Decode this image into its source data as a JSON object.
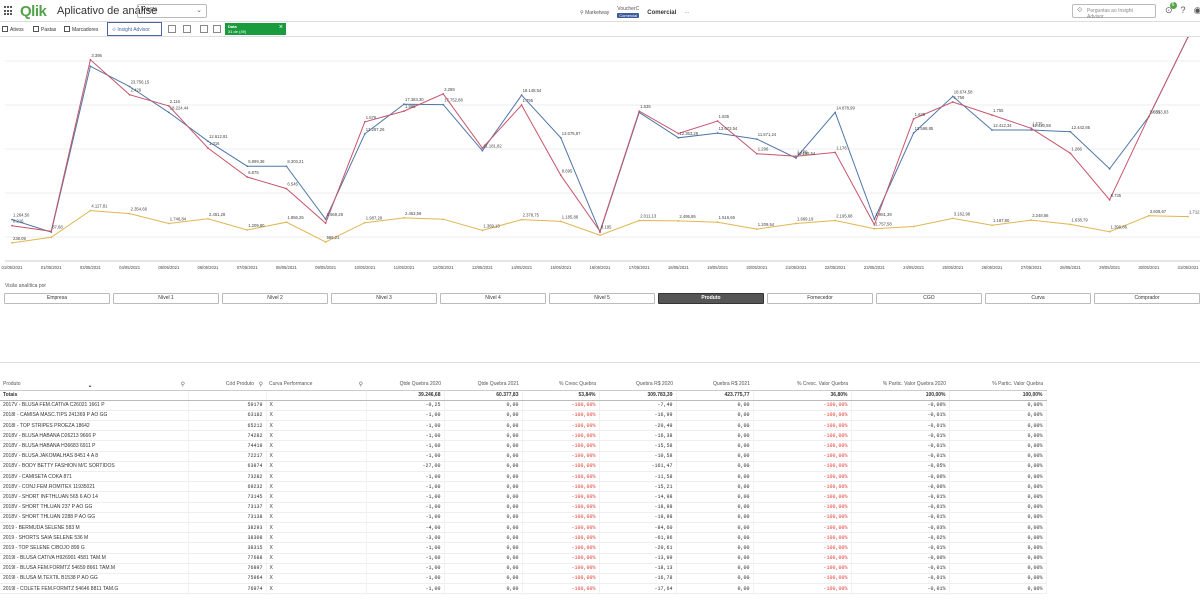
{
  "header": {
    "logo": "Qlik",
    "app_title": "Aplicativo de análise",
    "sheet_select": "Pasta",
    "nav_marketplace": "Marketway",
    "nav_active_top": "VoucherC",
    "nav_active_pill": "Comercial",
    "nav_commercial": "Comercial",
    "more": "···",
    "insight_search_placeholder": "Perguntas ao Insight Advisor",
    "notification_count": "6"
  },
  "toolbar": {
    "assets": "Ativos",
    "sheets": "Pastas",
    "bookmarks": "Marcadores",
    "insight_advisor": "Insight Advisor",
    "selection_field": "Data",
    "selection_value": "31 de (49)"
  },
  "chart_data": {
    "type": "line",
    "x": [
      "01/05/2021",
      "01/05/2021",
      "03/05/2021",
      "04/05/2021",
      "05/05/2021",
      "06/05/2021",
      "07/05/2021",
      "08/05/2021",
      "09/05/2021",
      "10/05/2021",
      "11/05/2021",
      "12/05/2021",
      "13/05/2021",
      "14/05/2021",
      "15/05/2021",
      "16/05/2021",
      "17/05/2021",
      "18/05/2021",
      "19/05/2021",
      "20/05/2021",
      "21/05/2021",
      "22/05/2021",
      "23/05/2021",
      "24/05/2021",
      "25/05/2021",
      "26/05/2021",
      "27/05/2021",
      "28/05/2021",
      "29/05/2021",
      "30/05/2021",
      "31/05/2021"
    ],
    "series": [
      {
        "color": "#4f77a8",
        "values": [
          9.6,
          6.7,
          45.2,
          40.5,
          34.5,
          27.8,
          22.0,
          22.0,
          9.7,
          29.5,
          36.4,
          36.3,
          25.6,
          38.5,
          28.6,
          6.7,
          34.5,
          28.6,
          29.7,
          28.3,
          23.9,
          34.5,
          9.7,
          29.7,
          38.2,
          30.4,
          30.4,
          30.0,
          21.4,
          33.5,
          52.0
        ]
      },
      {
        "color": "#c7566b",
        "values": [
          8.2,
          6.9,
          46.7,
          38.6,
          36.0,
          26.2,
          19.5,
          16.8,
          8.8,
          32.3,
          34.8,
          38.8,
          26.2,
          36.2,
          19.9,
          6.9,
          34.8,
          29.6,
          32.5,
          24.9,
          24.3,
          25.2,
          8.4,
          33.0,
          36.9,
          33.9,
          30.8,
          25.0,
          14.2,
          33.5,
          52.0
        ]
      },
      {
        "color": "#e0b651",
        "values": [
          4.2,
          5.5,
          11.7,
          11.0,
          8.7,
          9.8,
          7.2,
          9.0,
          4.4,
          8.9,
          10.0,
          9.7,
          7.1,
          9.6,
          9.2,
          6.0,
          9.4,
          9.3,
          9.0,
          7.4,
          8.7,
          9.4,
          7.5,
          8.0,
          9.9,
          8.3,
          9.5,
          8.5,
          6.8,
          10.5,
          10.3
        ]
      }
    ],
    "labels": [
      {
        "i": 0,
        "s": 0,
        "text": "1.264,50"
      },
      {
        "i": 0,
        "s": 1,
        "text": "8.216"
      },
      {
        "i": 0,
        "s": 2,
        "text": "238,09"
      },
      {
        "i": 1,
        "s": 1,
        "text": "87,68"
      },
      {
        "i": 2,
        "s": 1,
        "text": "3.395"
      },
      {
        "i": 2,
        "s": 2,
        "text": "4.117,81"
      },
      {
        "i": 3,
        "s": 0,
        "text": "23.756,15"
      },
      {
        "i": 3,
        "s": 1,
        "text": "2.426"
      },
      {
        "i": 3,
        "s": 2,
        "text": "2.354,68"
      },
      {
        "i": 4,
        "s": 1,
        "text": "2.116"
      },
      {
        "i": 4,
        "s": 0,
        "text": "18.224,44"
      },
      {
        "i": 4,
        "s": 2,
        "text": "1.746,84"
      },
      {
        "i": 5,
        "s": 0,
        "text": "12.612,81"
      },
      {
        "i": 5,
        "s": 1,
        "text": "1.316"
      },
      {
        "i": 5,
        "s": 2,
        "text": "2.451,28"
      },
      {
        "i": 6,
        "s": 0,
        "text": "5.899,38"
      },
      {
        "i": 6,
        "s": 1,
        "text": "6.875"
      },
      {
        "i": 6,
        "s": 2,
        "text": "1.209,80"
      },
      {
        "i": 7,
        "s": 0,
        "text": "8.303,21"
      },
      {
        "i": 7,
        "s": 1,
        "text": "6.545"
      },
      {
        "i": 7,
        "s": 2,
        "text": "1.856,25"
      },
      {
        "i": 8,
        "s": 0,
        "text": "2.569,28"
      },
      {
        "i": 8,
        "s": 2,
        "text": "566,21"
      },
      {
        "i": 9,
        "s": 1,
        "text": "1.576"
      },
      {
        "i": 9,
        "s": 0,
        "text": "13.287,26"
      },
      {
        "i": 9,
        "s": 2,
        "text": "1.987,28"
      },
      {
        "i": 10,
        "s": 0,
        "text": "17.383,30"
      },
      {
        "i": 10,
        "s": 1,
        "text": "1.995"
      },
      {
        "i": 10,
        "s": 2,
        "text": "2.463,59"
      },
      {
        "i": 11,
        "s": 1,
        "text": "2.289"
      },
      {
        "i": 11,
        "s": 0,
        "text": "17.752,88"
      },
      {
        "i": 12,
        "s": 0,
        "text": "11.181,82"
      },
      {
        "i": 12,
        "s": 2,
        "text": "1.369,13"
      },
      {
        "i": 13,
        "s": 0,
        "text": "18.148,54"
      },
      {
        "i": 13,
        "s": 1,
        "text": "1.795"
      },
      {
        "i": 13,
        "s": 2,
        "text": "2.378,75"
      },
      {
        "i": 14,
        "s": 0,
        "text": "13.075,87"
      },
      {
        "i": 14,
        "s": 1,
        "text": "8.695"
      },
      {
        "i": 14,
        "s": 2,
        "text": "1.185,88"
      },
      {
        "i": 15,
        "s": 1,
        "text": "8.195"
      },
      {
        "i": 16,
        "s": 1,
        "text": "1.635"
      },
      {
        "i": 16,
        "s": 2,
        "text": "2.011,13"
      },
      {
        "i": 17,
        "s": 0,
        "text": "12.353,29"
      },
      {
        "i": 17,
        "s": 2,
        "text": "2.495,95"
      },
      {
        "i": 18,
        "s": 1,
        "text": "1.835"
      },
      {
        "i": 18,
        "s": 0,
        "text": "13.673,54"
      },
      {
        "i": 18,
        "s": 2,
        "text": "1.516,65"
      },
      {
        "i": 19,
        "s": 0,
        "text": "11.571,24"
      },
      {
        "i": 19,
        "s": 1,
        "text": "1.296"
      },
      {
        "i": 19,
        "s": 2,
        "text": "1.209,54"
      },
      {
        "i": 20,
        "s": 0,
        "text": "11.198,54"
      },
      {
        "i": 20,
        "s": 1,
        "text": "1.189"
      },
      {
        "i": 20,
        "s": 2,
        "text": "1.669,19"
      },
      {
        "i": 21,
        "s": 0,
        "text": "14.878,99"
      },
      {
        "i": 21,
        "s": 1,
        "text": "1.176"
      },
      {
        "i": 21,
        "s": 2,
        "text": "2.195,68"
      },
      {
        "i": 22,
        "s": 0,
        "text": "2.981,39"
      },
      {
        "i": 22,
        "s": 2,
        "text": "1.757,58"
      },
      {
        "i": 23,
        "s": 1,
        "text": "1.635"
      },
      {
        "i": 23,
        "s": 0,
        "text": "13.598,85"
      },
      {
        "i": 24,
        "s": 0,
        "text": "18.674,58"
      },
      {
        "i": 24,
        "s": 1,
        "text": "1.756"
      },
      {
        "i": 24,
        "s": 2,
        "text": "3.162,98"
      },
      {
        "i": 25,
        "s": 1,
        "text": "1.755"
      },
      {
        "i": 25,
        "s": 0,
        "text": "12.412,34"
      },
      {
        "i": 25,
        "s": 2,
        "text": "1.187,80"
      },
      {
        "i": 26,
        "s": 1,
        "text": "1.575"
      },
      {
        "i": 26,
        "s": 0,
        "text": "12.420,58"
      },
      {
        "i": 26,
        "s": 2,
        "text": "2.248,66"
      },
      {
        "i": 27,
        "s": 0,
        "text": "12.442,85"
      },
      {
        "i": 27,
        "s": 1,
        "text": "1.266"
      },
      {
        "i": 27,
        "s": 2,
        "text": "1.638,79"
      },
      {
        "i": 28,
        "s": 1,
        "text": "8.735"
      },
      {
        "i": 28,
        "s": 2,
        "text": "1.399,86"
      },
      {
        "i": 29,
        "s": 1,
        "text": "1.335"
      },
      {
        "i": 29,
        "s": 0,
        "text": "14.513,83"
      },
      {
        "i": 29,
        "s": 2,
        "text": "3.608,67"
      },
      {
        "i": 30,
        "s": 2,
        "text": "1.712,89"
      }
    ]
  },
  "dimension_bar": {
    "title": "Visão analítica por",
    "buttons": [
      "Empresa",
      "Nível 1",
      "Nível 2",
      "Nível 3",
      "Nível 4",
      "Nível 5",
      "Produto",
      "Fornecedor",
      "CGO",
      "Curva",
      "Comprador"
    ],
    "active": "Produto"
  },
  "table": {
    "columns": [
      "Produto",
      "Cód Produto",
      "Curva Performance",
      "Qtde Quebra 2020",
      "Qtde Quebra 2021",
      "% Cresc Quebra",
      "Quebra R$ 2020",
      "Quebra R$ 2021",
      "% Cresc. Valor Quebra",
      "% Partic. Valor Quebra 2020",
      "% Partic. Valor Quebra"
    ],
    "totals": [
      "Totais",
      "",
      "",
      "39.246,68",
      "60.377,83",
      "53,84%",
      "309.783,39",
      "423.775,77",
      "36,80%",
      "100,00%",
      "100,00%"
    ],
    "rows": [
      [
        "2017V - BLUSA FEM.CATIVA C26021 1661 P",
        "59179",
        "X",
        "-0,25",
        "0,00",
        "-100,00%",
        "-7,49",
        "0,00",
        "-100,00%",
        "-0,00%",
        "0,00%"
      ],
      [
        "2018I - CAMISA MASC.TIPS 241369 P AO GG",
        "63182",
        "X",
        "-1,00",
        "0,00",
        "-100,00%",
        "-16,99",
        "0,00",
        "-100,00%",
        "-0,01%",
        "0,00%"
      ],
      [
        "2018I - TOP STRIPES PROEZA 18642",
        "65212",
        "X",
        "-1,00",
        "0,00",
        "-100,00%",
        "-20,49",
        "0,00",
        "-100,00%",
        "-0,01%",
        "0,00%"
      ],
      [
        "2018V - BLUSA HABANA D26213 9666 P",
        "74282",
        "X",
        "-1,00",
        "0,00",
        "-100,00%",
        "-16,38",
        "0,00",
        "-100,00%",
        "-0,01%",
        "0,00%"
      ],
      [
        "2018V - BLUSA HABANA H36683 6911 P",
        "74419",
        "X",
        "-1,00",
        "0,00",
        "-100,00%",
        "-15,58",
        "0,00",
        "-100,00%",
        "-0,01%",
        "0,00%"
      ],
      [
        "2018V - BLUSA JAKOMALHAS 8451 4 A 8",
        "72217",
        "X",
        "-1,00",
        "0,00",
        "-100,00%",
        "-10,58",
        "0,00",
        "-100,00%",
        "-0,01%",
        "0,00%"
      ],
      [
        "2018V - BODY BETTY FASHION M/C SORTIDOS",
        "63874",
        "X",
        "-27,00",
        "0,00",
        "-100,00%",
        "-161,47",
        "0,00",
        "-100,00%",
        "-0,05%",
        "0,00%"
      ],
      [
        "2018V - CAMISETA COKA 871",
        "73282",
        "X",
        "-1,00",
        "0,00",
        "-100,00%",
        "-11,58",
        "0,00",
        "-100,00%",
        "-0,00%",
        "0,00%"
      ],
      [
        "2018V - CONJ.FEM.ROMITEX 11935021",
        "69232",
        "X",
        "-1,00",
        "0,00",
        "-100,00%",
        "-15,21",
        "0,00",
        "-100,00%",
        "-0,00%",
        "0,00%"
      ],
      [
        "2018V - SHORT INFTHLUAN 565 6 AO 14",
        "73145",
        "X",
        "-1,00",
        "0,00",
        "-100,00%",
        "-14,98",
        "0,00",
        "-100,00%",
        "-0,01%",
        "0,00%"
      ],
      [
        "2018V - SHORT THLUAN 237 P AO GG",
        "73137",
        "X",
        "-1,00",
        "0,00",
        "-100,00%",
        "-18,98",
        "0,00",
        "-100,00%",
        "-0,01%",
        "0,00%"
      ],
      [
        "2018V - SHORT THLUAN 2288 P AO GG",
        "73138",
        "X",
        "-1,00",
        "0,00",
        "-100,00%",
        "-19,98",
        "0,00",
        "-100,00%",
        "-0,01%",
        "0,00%"
      ],
      [
        "2019 - BERMUDA SELENE 583 M",
        "38293",
        "X",
        "-4,00",
        "0,00",
        "-100,00%",
        "-84,60",
        "0,00",
        "-100,00%",
        "-0,03%",
        "0,00%"
      ],
      [
        "2019 - SHORTS SAIA SELENE 536 M",
        "38308",
        "X",
        "-3,00",
        "0,00",
        "-100,00%",
        "-61,96",
        "0,00",
        "-100,00%",
        "-0,02%",
        "0,00%"
      ],
      [
        "2019 - TOP SELENE C/BOJO 899 G",
        "38315",
        "X",
        "-1,00",
        "0,00",
        "-100,00%",
        "-20,61",
        "0,00",
        "-100,00%",
        "-0,01%",
        "0,00%"
      ],
      [
        "2019I - BLUSA CATIVA H926901 4581 TAM.M",
        "77688",
        "X",
        "-1,00",
        "0,00",
        "-100,00%",
        "-13,99",
        "0,00",
        "-100,00%",
        "-0,00%",
        "0,00%"
      ],
      [
        "2019I - BLUSA FEM.FORMTZ 54659 8661 TAM.M",
        "76897",
        "X",
        "-1,00",
        "0,00",
        "-100,00%",
        "-18,13",
        "0,00",
        "-100,00%",
        "-0,01%",
        "0,00%"
      ],
      [
        "2019I - BLUSA M.TEXTIL B1538 P AO GG",
        "75964",
        "X",
        "-1,00",
        "0,00",
        "-100,00%",
        "-16,78",
        "0,00",
        "-100,00%",
        "-0,01%",
        "0,00%"
      ],
      [
        "2019I - COLETE FEM.FORMTZ 54646 8811 TAM.G",
        "76974",
        "X",
        "-1,00",
        "0,00",
        "-100,00%",
        "-17,64",
        "0,00",
        "-100,00%",
        "-0,01%",
        "0,00%"
      ]
    ]
  }
}
